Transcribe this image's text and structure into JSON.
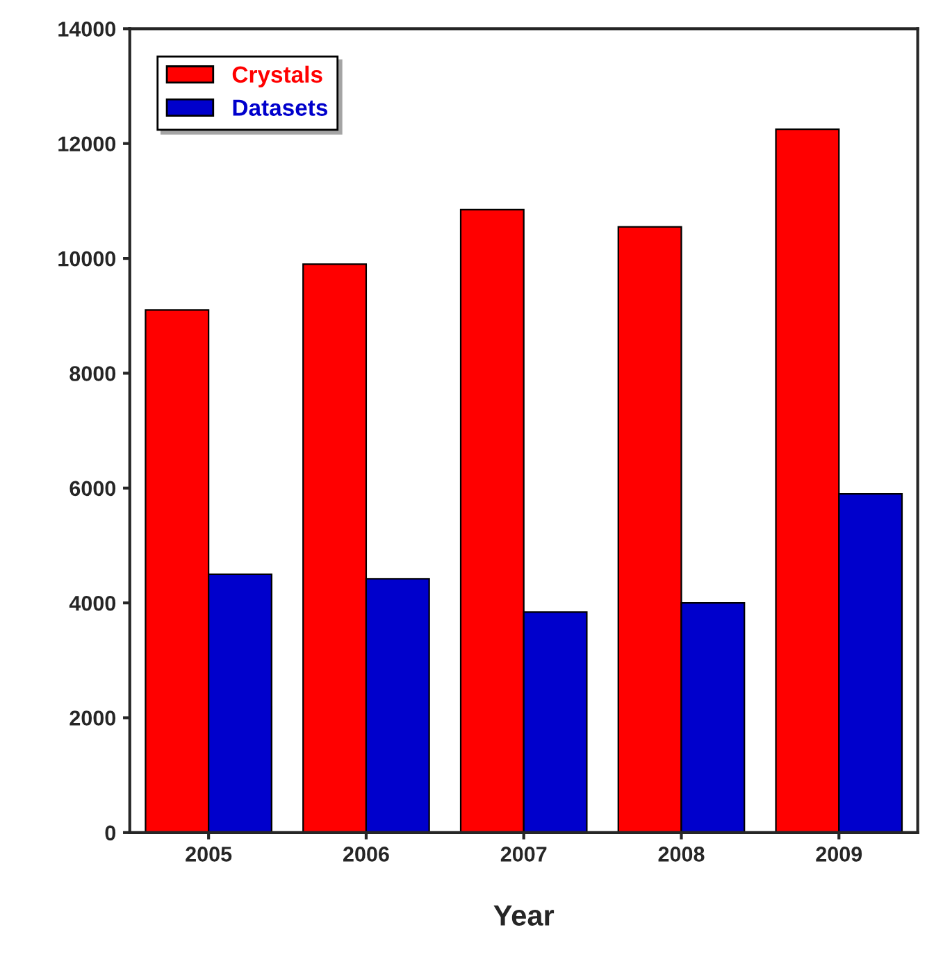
{
  "chart_data": {
    "type": "bar",
    "xlabel": "Year",
    "categories": [
      "2005",
      "2006",
      "2007",
      "2008",
      "2009"
    ],
    "series": [
      {
        "name": "Crystals",
        "color": "#ff0000",
        "values": [
          9100,
          9900,
          10850,
          10550,
          12250
        ]
      },
      {
        "name": "Datasets",
        "color": "#0000cc",
        "values": [
          4500,
          4420,
          3840,
          4000,
          5900
        ]
      }
    ],
    "ylim": [
      0,
      14000
    ],
    "yticks": [
      0,
      2000,
      4000,
      6000,
      8000,
      10000,
      12000,
      14000
    ],
    "grid": false,
    "legend": "top left"
  }
}
